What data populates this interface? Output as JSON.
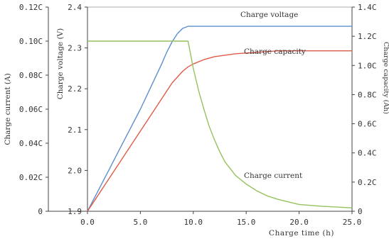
{
  "chart_data": {
    "type": "line",
    "title": "",
    "grid": false,
    "x_axis": {
      "label": "Charge time (h)",
      "range": [
        0,
        25
      ],
      "ticks": [
        0,
        5,
        10,
        15,
        20,
        25
      ],
      "tick_labels": [
        "0.0",
        "5.0",
        "10.0",
        "15.0",
        "20.0",
        "25.0"
      ]
    },
    "y_axes": {
      "current": {
        "label": "Charge current (A)",
        "side": "far-left",
        "range": [
          0,
          0.12
        ],
        "ticks": [
          0,
          0.02,
          0.04,
          0.06,
          0.08,
          0.1,
          0.12
        ],
        "tick_labels": [
          "0",
          "0.02C",
          "0.04C",
          "0.06C",
          "0.08C",
          "0.10C",
          "0.12C"
        ]
      },
      "voltage": {
        "label": "Charge voltage (V)",
        "side": "left",
        "range": [
          1.9,
          2.4
        ],
        "ticks": [
          1.9,
          2.0,
          2.1,
          2.2,
          2.3,
          2.4
        ],
        "tick_labels": [
          "1.9",
          "2.0",
          "2.1",
          "2.2",
          "2.3",
          "2.4"
        ]
      },
      "capacity": {
        "label": "Charge capacity (Ah)",
        "side": "right",
        "range": [
          0,
          1.4
        ],
        "ticks": [
          0,
          0.2,
          0.4,
          0.6,
          0.8,
          1.0,
          1.2,
          1.4
        ],
        "tick_labels": [
          "0",
          "0.2C",
          "0.4C",
          "0.6C",
          "0.8C",
          "1.0C",
          "1.2C",
          "1.4C"
        ]
      }
    },
    "series": [
      {
        "name": "Charge voltage",
        "axis": "voltage",
        "color": "#5b8fd0",
        "x": [
          0,
          1,
          2,
          3,
          4,
          5,
          6,
          7,
          7.5,
          8,
          8.5,
          9,
          9.5,
          10,
          12,
          15,
          20,
          25
        ],
        "y": [
          1.9,
          1.95,
          2.0,
          2.05,
          2.1,
          2.15,
          2.205,
          2.26,
          2.29,
          2.315,
          2.335,
          2.348,
          2.353,
          2.353,
          2.353,
          2.353,
          2.353,
          2.353
        ]
      },
      {
        "name": "Charge capacity",
        "axis": "capacity",
        "color": "#e05a4a",
        "x": [
          0,
          2,
          4,
          6,
          8,
          9,
          9.5,
          10,
          11,
          12,
          14,
          16,
          18,
          20,
          22,
          25
        ],
        "y": [
          0,
          0.22,
          0.44,
          0.66,
          0.88,
          0.96,
          0.99,
          1.01,
          1.04,
          1.06,
          1.08,
          1.09,
          1.1,
          1.1,
          1.1,
          1.1
        ]
      },
      {
        "name": "Charge current",
        "axis": "current",
        "color": "#95c25c",
        "x": [
          0,
          9.5,
          10,
          10.5,
          11,
          11.5,
          12,
          12.5,
          13,
          14,
          15,
          16,
          17,
          18,
          20,
          22,
          25
        ],
        "y": [
          0.1,
          0.1,
          0.084,
          0.071,
          0.06,
          0.05,
          0.042,
          0.035,
          0.029,
          0.021,
          0.016,
          0.012,
          0.009,
          0.007,
          0.004,
          0.003,
          0.002
        ]
      }
    ]
  }
}
